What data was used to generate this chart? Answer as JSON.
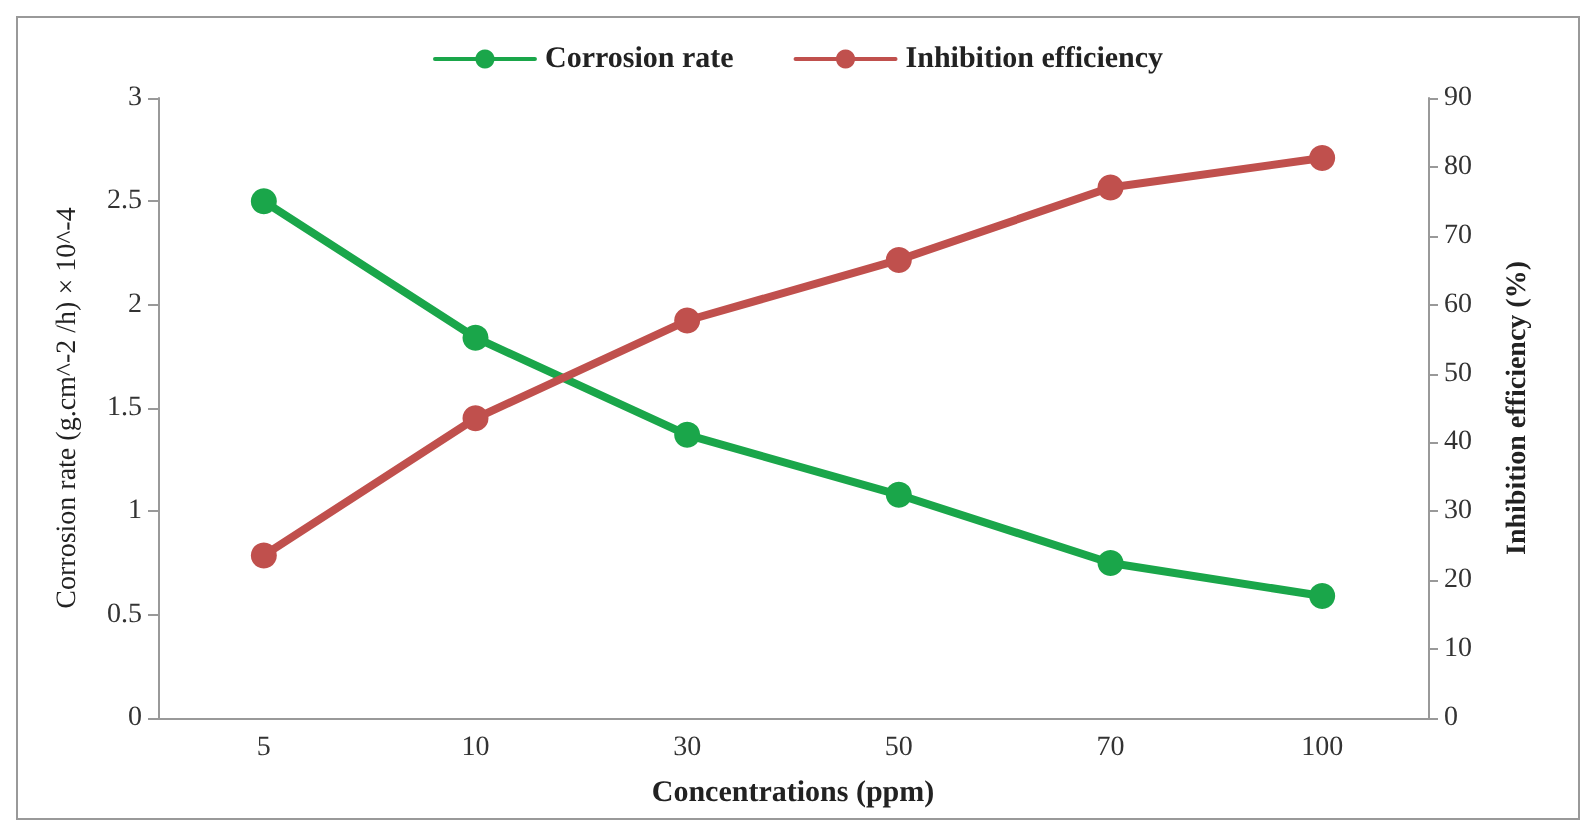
{
  "chart_data": {
    "type": "line",
    "xlabel": "Concentrations (ppm)",
    "ylabel": "Corrosion rate (g.cm^-2 /h) × 10^-4",
    "y2label": "Inhibition efficiency (%)",
    "categories": [
      "5",
      "10",
      "30",
      "50",
      "70",
      "100"
    ],
    "series": [
      {
        "name": "Corrosion rate",
        "color": "#1aa64a",
        "values": [
          2.5,
          1.84,
          1.37,
          1.08,
          0.75,
          0.59
        ]
      },
      {
        "name": "Inhibition efficiency",
        "color": "#c0504d",
        "axis": "y2",
        "values": [
          23.6,
          43.5,
          57.7,
          66.5,
          77,
          81.3
        ]
      }
    ],
    "ylim": [
      0,
      3
    ],
    "yticks": [
      0,
      0.5,
      1,
      1.5,
      2,
      2.5,
      3
    ],
    "y2lim": [
      0,
      90
    ],
    "y2ticks": [
      0,
      10,
      20,
      30,
      40,
      50,
      60,
      70,
      80,
      90
    ],
    "grid": false,
    "legend": "top",
    "marker": "circle",
    "line_style": "solid"
  }
}
